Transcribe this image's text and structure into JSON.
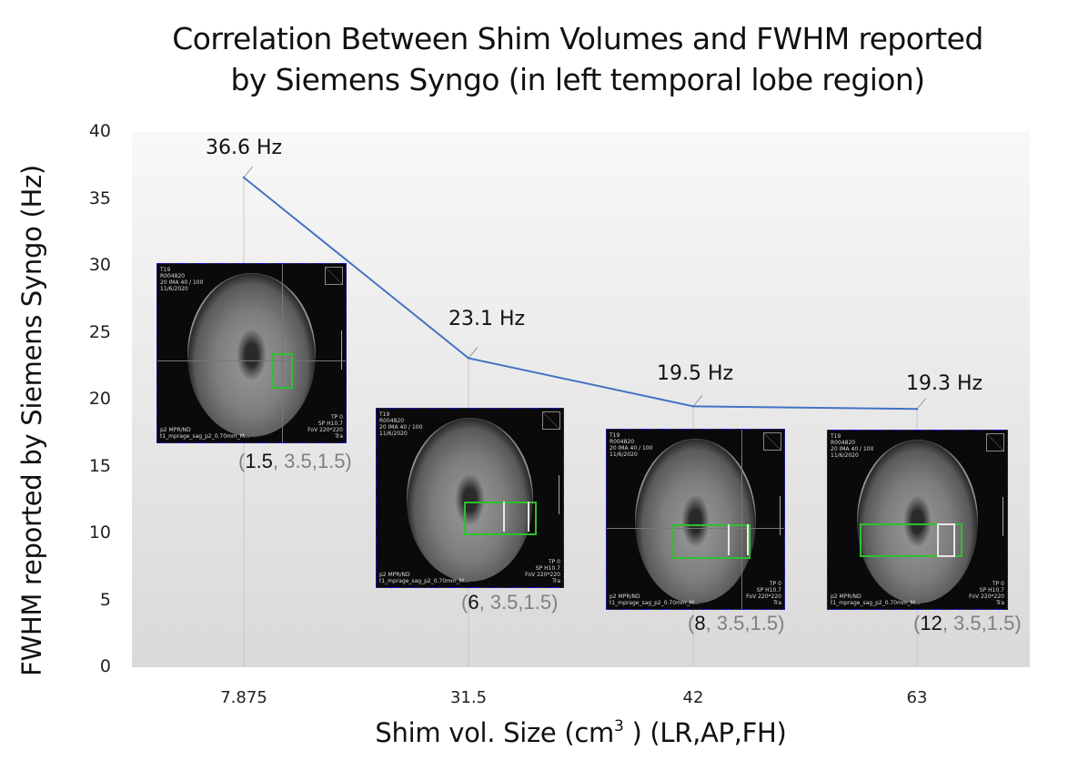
{
  "chart_data": {
    "type": "line",
    "title": "Correlation Between Shim Volumes and FWHM reported by Siemens Syngo (in left temporal lobe region)",
    "title_lines": [
      "Correlation  Between Shim Volumes and FWHM reported",
      "by Siemens Syngo (in left temporal lobe region)"
    ],
    "xlabel": "Shim vol. Size (cm",
    "xlabel_sup": "3",
    "xlabel_suffix": " ) (LR,AP,FH)",
    "ylabel": "FWHM reported by Siemens Syngo (Hz)",
    "ylim": [
      0,
      40
    ],
    "yticks": [
      "0",
      "5",
      "10",
      "15",
      "20",
      "25",
      "30",
      "35",
      "40"
    ],
    "categories": [
      "7.875",
      "31.5",
      "42",
      "63"
    ],
    "series": [
      {
        "name": "FWHM",
        "color": "#4472c4",
        "values": [
          36.6,
          23.1,
          19.5,
          19.3
        ],
        "data_labels": [
          "36.6 Hz",
          "23.1 Hz",
          "19.5 Hz",
          "19.3 Hz"
        ]
      }
    ],
    "grid": false,
    "legend": "none",
    "annotations": [
      {
        "category": "7.875",
        "dims_lr": "1.5",
        "dims_rest": ", 3.5,1.5)"
      },
      {
        "category": "31.5",
        "dims_lr": "6",
        "dims_rest": ", 3.5,1.5)"
      },
      {
        "category": "42",
        "dims_lr": "8",
        "dims_rest": ", 3.5,1.5)"
      },
      {
        "category": "63",
        "dims_lr": "12",
        "dims_rest": ", 3.5,1.5)"
      }
    ],
    "inset_images": [
      {
        "description": "axial MRI with small green shim box",
        "header": [
          "T19",
          "R004820",
          "20 IMA 40 / 100",
          "11/6/2020"
        ],
        "footer_left": [
          "p2 MPR/ND",
          "t1_mprage_sag_p2_0.70mm_M..."
        ],
        "footer_right": [
          "TP 0",
          "SP H10.7",
          "FoV 220*220",
          "Tra"
        ],
        "scale": "5cm"
      },
      {
        "description": "axial MRI with medium green shim box",
        "header": [
          "T19",
          "R004820",
          "20 IMA 40 / 100",
          "11/6/2020"
        ],
        "footer_left": [
          "p2 MPR/ND",
          "t1_mprage_sag_p2_0.70mm_M..."
        ],
        "footer_right": [
          "TP 0",
          "SP H10.7",
          "FoV 220*220",
          "Tra"
        ],
        "scale": "5cm"
      },
      {
        "description": "axial MRI with wider green shim box",
        "header": [
          "T19",
          "R004820",
          "20 IMA 40 / 100",
          "11/6/2020"
        ],
        "footer_left": [
          "p2 MPR/ND",
          "t1_mprage_sag_p2_0.70mm_M..."
        ],
        "footer_right": [
          "TP 0",
          "SP H10.7",
          "FoV 220*220",
          "Tra"
        ],
        "scale": "5cm"
      },
      {
        "description": "axial MRI with widest green shim box",
        "header": [
          "T19",
          "R004820",
          "20 IMA 40 / 100",
          "11/6/2020"
        ],
        "footer_left": [
          "p2 MPR/ND",
          "t1_mprage_sag_p2_0.70mm_M..."
        ],
        "footer_right": [
          "TP 0",
          "SP H10.7",
          "FoV 220*220",
          "Tra"
        ],
        "scale": "5cm"
      }
    ]
  }
}
